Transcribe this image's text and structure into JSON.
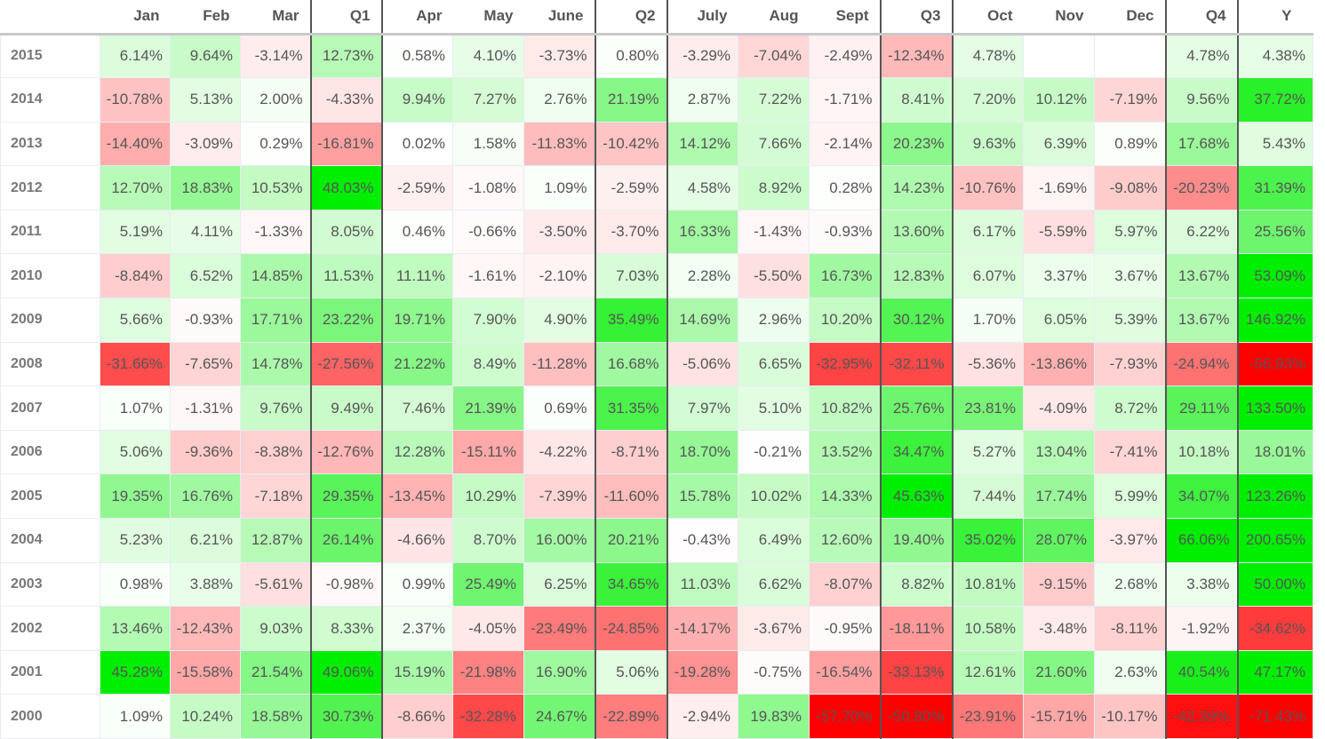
{
  "columns": [
    "Jan",
    "Feb",
    "Mar",
    "Q1",
    "Apr",
    "May",
    "June",
    "Q2",
    "July",
    "Aug",
    "Sept",
    "Q3",
    "Oct",
    "Nov",
    "Dec",
    "Q4",
    "Y"
  ],
  "rows": [
    {
      "year": "2015",
      "values": [
        "6.14%",
        "9.64%",
        "-3.14%",
        "12.73%",
        "0.58%",
        "4.10%",
        "-3.73%",
        "0.80%",
        "-3.29%",
        "-7.04%",
        "-2.49%",
        "-12.34%",
        "4.78%",
        "",
        "",
        "4.78%",
        "4.38%"
      ]
    },
    {
      "year": "2014",
      "values": [
        "-10.78%",
        "5.13%",
        "2.00%",
        "-4.33%",
        "9.94%",
        "7.27%",
        "2.76%",
        "21.19%",
        "2.87%",
        "7.22%",
        "-1.71%",
        "8.41%",
        "7.20%",
        "10.12%",
        "-7.19%",
        "9.56%",
        "37.72%"
      ]
    },
    {
      "year": "2013",
      "values": [
        "-14.40%",
        "-3.09%",
        "0.29%",
        "-16.81%",
        "0.02%",
        "1.58%",
        "-11.83%",
        "-10.42%",
        "14.12%",
        "7.66%",
        "-2.14%",
        "20.23%",
        "9.63%",
        "6.39%",
        "0.89%",
        "17.68%",
        "5.43%"
      ]
    },
    {
      "year": "2012",
      "values": [
        "12.70%",
        "18.83%",
        "10.53%",
        "48.03%",
        "-2.59%",
        "-1.08%",
        "1.09%",
        "-2.59%",
        "4.58%",
        "8.92%",
        "0.28%",
        "14.23%",
        "-10.76%",
        "-1.69%",
        "-9.08%",
        "-20.23%",
        "31.39%"
      ]
    },
    {
      "year": "2011",
      "values": [
        "5.19%",
        "4.11%",
        "-1.33%",
        "8.05%",
        "0.46%",
        "-0.66%",
        "-3.50%",
        "-3.70%",
        "16.33%",
        "-1.43%",
        "-0.93%",
        "13.60%",
        "6.17%",
        "-5.59%",
        "5.97%",
        "6.22%",
        "25.56%"
      ]
    },
    {
      "year": "2010",
      "values": [
        "-8.84%",
        "6.52%",
        "14.85%",
        "11.53%",
        "11.11%",
        "-1.61%",
        "-2.10%",
        "7.03%",
        "2.28%",
        "-5.50%",
        "16.73%",
        "12.83%",
        "6.07%",
        "3.37%",
        "3.67%",
        "13.67%",
        "53.09%"
      ]
    },
    {
      "year": "2009",
      "values": [
        "5.66%",
        "-0.93%",
        "17.71%",
        "23.22%",
        "19.71%",
        "7.90%",
        "4.90%",
        "35.49%",
        "14.69%",
        "2.96%",
        "10.20%",
        "30.12%",
        "1.70%",
        "6.05%",
        "5.39%",
        "13.67%",
        "146.92%"
      ]
    },
    {
      "year": "2008",
      "values": [
        "-31.66%",
        "-7.65%",
        "14.78%",
        "-27.56%",
        "21.22%",
        "8.49%",
        "-11.28%",
        "16.68%",
        "-5.06%",
        "6.65%",
        "-32.95%",
        "-32.11%",
        "-5.36%",
        "-13.86%",
        "-7.93%",
        "-24.94%",
        "-56.93%"
      ]
    },
    {
      "year": "2007",
      "values": [
        "1.07%",
        "-1.31%",
        "9.76%",
        "9.49%",
        "7.46%",
        "21.39%",
        "0.69%",
        "31.35%",
        "7.97%",
        "5.10%",
        "10.82%",
        "25.76%",
        "23.81%",
        "-4.09%",
        "8.72%",
        "29.11%",
        "133.50%"
      ]
    },
    {
      "year": "2006",
      "values": [
        "5.06%",
        "-9.36%",
        "-8.38%",
        "-12.76%",
        "12.28%",
        "-15.11%",
        "-4.22%",
        "-8.71%",
        "18.70%",
        "-0.21%",
        "13.52%",
        "34.47%",
        "5.27%",
        "13.04%",
        "-7.41%",
        "10.18%",
        "18.01%"
      ]
    },
    {
      "year": "2005",
      "values": [
        "19.35%",
        "16.76%",
        "-7.18%",
        "29.35%",
        "-13.45%",
        "10.29%",
        "-7.39%",
        "-11.60%",
        "15.78%",
        "10.02%",
        "14.33%",
        "45.63%",
        "7.44%",
        "17.74%",
        "5.99%",
        "34.07%",
        "123.26%"
      ]
    },
    {
      "year": "2004",
      "values": [
        "5.23%",
        "6.21%",
        "12.87%",
        "26.14%",
        "-4.66%",
        "8.70%",
        "16.00%",
        "20.21%",
        "-0.43%",
        "6.49%",
        "12.60%",
        "19.40%",
        "35.02%",
        "28.07%",
        "-3.97%",
        "66.06%",
        "200.65%"
      ]
    },
    {
      "year": "2003",
      "values": [
        "0.98%",
        "3.88%",
        "-5.61%",
        "-0.98%",
        "0.99%",
        "25.49%",
        "6.25%",
        "34.65%",
        "11.03%",
        "6.62%",
        "-8.07%",
        "8.82%",
        "10.81%",
        "-9.15%",
        "2.68%",
        "3.38%",
        "50.00%"
      ]
    },
    {
      "year": "2002",
      "values": [
        "13.46%",
        "-12.43%",
        "9.03%",
        "8.33%",
        "2.37%",
        "-4.05%",
        "-23.49%",
        "-24.85%",
        "-14.17%",
        "-3.67%",
        "-0.95%",
        "-18.11%",
        "10.58%",
        "-3.48%",
        "-8.11%",
        "-1.92%",
        "-34.62%"
      ]
    },
    {
      "year": "2001",
      "values": [
        "45.28%",
        "-15.58%",
        "21.54%",
        "49.06%",
        "15.19%",
        "-21.98%",
        "16.90%",
        "5.06%",
        "-19.28%",
        "-0.75%",
        "-16.54%",
        "-33.13%",
        "12.61%",
        "21.60%",
        "2.63%",
        "40.54%",
        "47.17%"
      ]
    },
    {
      "year": "2000",
      "values": [
        "1.09%",
        "10.24%",
        "18.58%",
        "30.73%",
        "-8.66%",
        "-32.28%",
        "24.67%",
        "-22.89%",
        "-2.94%",
        "19.83%",
        "-57.70%",
        "-50.80%",
        "-23.91%",
        "-15.71%",
        "-10.17%",
        "-42.39%",
        "-71.43%"
      ]
    }
  ],
  "colors": {
    "positive_max": "#00ee00",
    "negative_max": "#ff0000",
    "neutral": "#ffffff",
    "text": "#555555",
    "separator": "#555555"
  }
}
